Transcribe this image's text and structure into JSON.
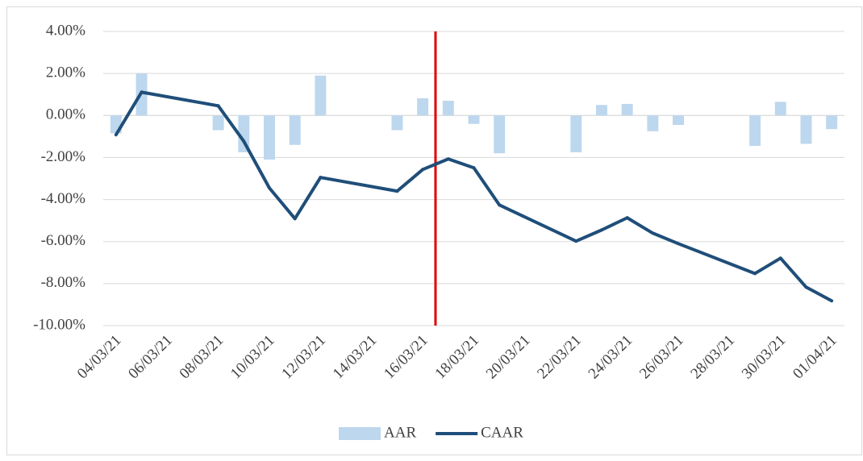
{
  "chart_data": {
    "type": "bar-line",
    "categories": [
      "04/03/21",
      null,
      "06/03/21",
      null,
      "08/03/21",
      null,
      "10/03/21",
      null,
      "12/03/21",
      null,
      "14/03/21",
      null,
      "16/03/21",
      null,
      "18/03/21",
      null,
      "20/03/21",
      null,
      "22/03/21",
      null,
      "24/03/21",
      null,
      "26/03/21",
      null,
      "28/03/21",
      null,
      "30/03/21",
      null,
      "01/04/21"
    ],
    "series": [
      {
        "name": "AAR",
        "kind": "bar",
        "color": "#bdd7ee",
        "values": [
          -0.85,
          2.0,
          null,
          null,
          -0.7,
          -1.75,
          -2.1,
          -1.4,
          1.9,
          null,
          null,
          -0.7,
          0.82,
          0.7,
          -0.4,
          -1.8,
          null,
          null,
          -1.75,
          0.5,
          0.55,
          -0.75,
          -0.45,
          null,
          null,
          -1.45,
          0.65,
          -1.35,
          -0.65
        ]
      },
      {
        "name": "CAAR",
        "kind": "line",
        "color": "#1f4e79",
        "values": [
          -0.92,
          1.11,
          null,
          null,
          0.46,
          -1.23,
          -3.45,
          -4.91,
          -2.95,
          null,
          null,
          -3.6,
          -2.57,
          -2.07,
          -2.49,
          -4.26,
          null,
          null,
          -5.98,
          -5.45,
          -4.87,
          -5.6,
          -6.1,
          null,
          null,
          -7.52,
          -6.79,
          -8.17,
          -8.82
        ]
      }
    ],
    "connect_gaps": true,
    "event_line": {
      "between": [
        "16/03/21",
        "17/03/21"
      ],
      "color": "#e00000"
    },
    "ylim": [
      -10,
      4
    ],
    "yticks": [
      {
        "value": -10,
        "label": "-10.00%"
      },
      {
        "value": -8,
        "label": "-8.00%"
      },
      {
        "value": -6,
        "label": "-6.00%"
      },
      {
        "value": -4,
        "label": "-4.00%"
      },
      {
        "value": -2,
        "label": "-2.00%"
      },
      {
        "value": 0,
        "label": "0.00%"
      },
      {
        "value": 2,
        "label": "2.00%"
      },
      {
        "value": 4,
        "label": "4.00%"
      }
    ],
    "grid": true,
    "legend": "bottom"
  }
}
